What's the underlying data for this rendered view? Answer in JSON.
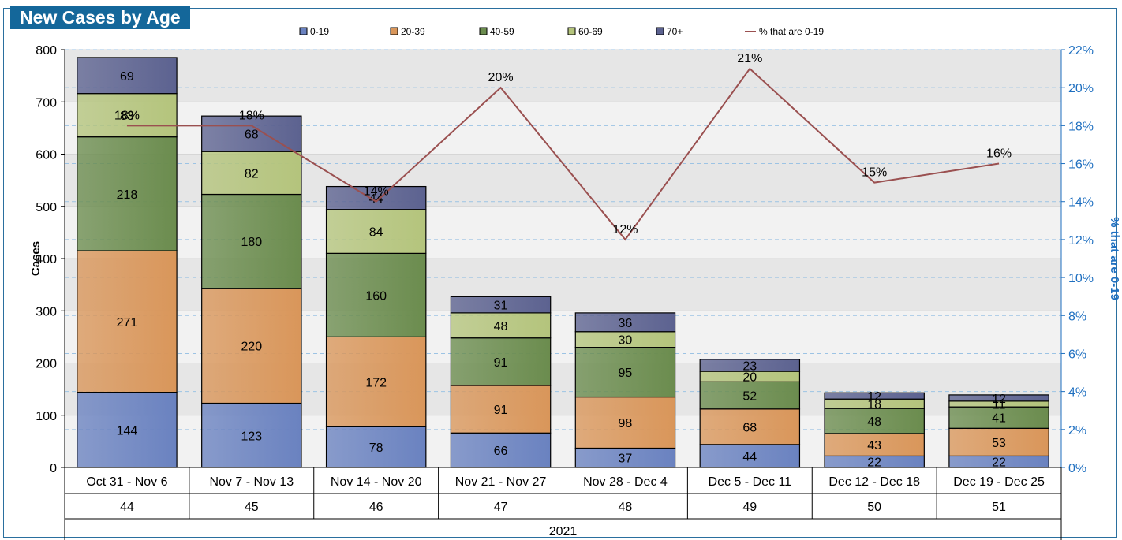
{
  "title": "New Cases by Age",
  "chart_data": {
    "type": "bar",
    "stacked": true,
    "categories": [
      "Oct 31 - Nov 6",
      "Nov 7 - Nov 13",
      "Nov 14 - Nov 20",
      "Nov 21 - Nov 27",
      "Nov 28 - Dec 4",
      "Dec 5 - Dec 11",
      "Dec 12 - Dec 18",
      "Dec 19 - Dec 25"
    ],
    "weeks": [
      "44",
      "45",
      "46",
      "47",
      "48",
      "49",
      "50",
      "51"
    ],
    "year": "2021",
    "series": [
      {
        "name": "0-19",
        "color": "#6a82c0",
        "values": [
          144,
          123,
          78,
          66,
          37,
          44,
          22,
          22
        ]
      },
      {
        "name": "20-39",
        "color": "#d9965a",
        "values": [
          271,
          220,
          172,
          91,
          98,
          68,
          43,
          53
        ]
      },
      {
        "name": "40-59",
        "color": "#6b8c4e",
        "values": [
          218,
          180,
          160,
          91,
          95,
          52,
          48,
          41
        ]
      },
      {
        "name": "60-69",
        "color": "#b4c47c",
        "values": [
          83,
          82,
          84,
          48,
          30,
          20,
          18,
          11
        ]
      },
      {
        "name": "70+",
        "color": "#5c6290",
        "values": [
          69,
          68,
          44,
          31,
          36,
          23,
          12,
          12
        ]
      }
    ],
    "line_series": {
      "name": "% that are 0-19",
      "color": "#9a5050",
      "values": [
        18,
        18,
        14,
        20,
        12,
        21,
        15,
        16
      ],
      "labels": [
        "18%",
        "18%",
        "14%",
        "20%",
        "12%",
        "21%",
        "15%",
        "16%"
      ]
    },
    "ylabel": "Cases",
    "y2label": "% that are 0-19",
    "ylim": [
      0,
      800
    ],
    "yticks": [
      "0",
      "100",
      "200",
      "300",
      "400",
      "500",
      "600",
      "700",
      "800"
    ],
    "y2lim": [
      0,
      22
    ],
    "y2ticks": [
      "0%",
      "2%",
      "4%",
      "6%",
      "8%",
      "10%",
      "12%",
      "14%",
      "16%",
      "18%",
      "20%",
      "22%"
    ],
    "legend_position": "top",
    "colors": {
      "right_axis": "#1e6fc0",
      "grid": "#9cc3e4"
    }
  }
}
